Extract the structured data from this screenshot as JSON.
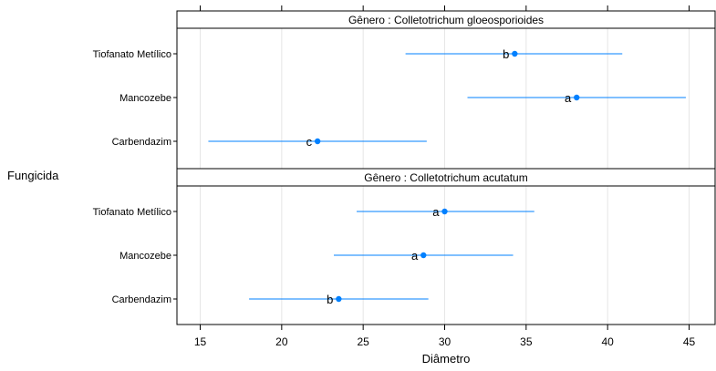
{
  "chart_data": {
    "type": "dotplot",
    "xlabel": "Diâmetro",
    "ylabel": "Fungicida",
    "xlim": [
      13.5,
      46.5
    ],
    "xticks": [
      15,
      20,
      25,
      30,
      35,
      40,
      45
    ],
    "grid": true,
    "point_color": "#0080ff",
    "categories": [
      "Tiofanato Metílico",
      "Mancozebe",
      "Carbendazim"
    ],
    "panels": [
      {
        "strip": "Gênero : Colletotrichum gloeosporioides",
        "rows": [
          {
            "category": "Tiofanato Metílico",
            "value": 34.3,
            "lower": 27.6,
            "upper": 40.9,
            "group": "b"
          },
          {
            "category": "Mancozebe",
            "value": 38.1,
            "lower": 31.4,
            "upper": 44.8,
            "group": "a"
          },
          {
            "category": "Carbendazim",
            "value": 22.2,
            "lower": 15.5,
            "upper": 28.9,
            "group": "c"
          }
        ]
      },
      {
        "strip": "Gênero : Colletotrichum acutatum",
        "rows": [
          {
            "category": "Tiofanato Metílico",
            "value": 30.0,
            "lower": 24.6,
            "upper": 35.5,
            "group": "a"
          },
          {
            "category": "Mancozebe",
            "value": 28.7,
            "lower": 23.2,
            "upper": 34.2,
            "group": "a"
          },
          {
            "category": "Carbendazim",
            "value": 23.5,
            "lower": 18.0,
            "upper": 29.0,
            "group": "b"
          }
        ]
      }
    ]
  }
}
